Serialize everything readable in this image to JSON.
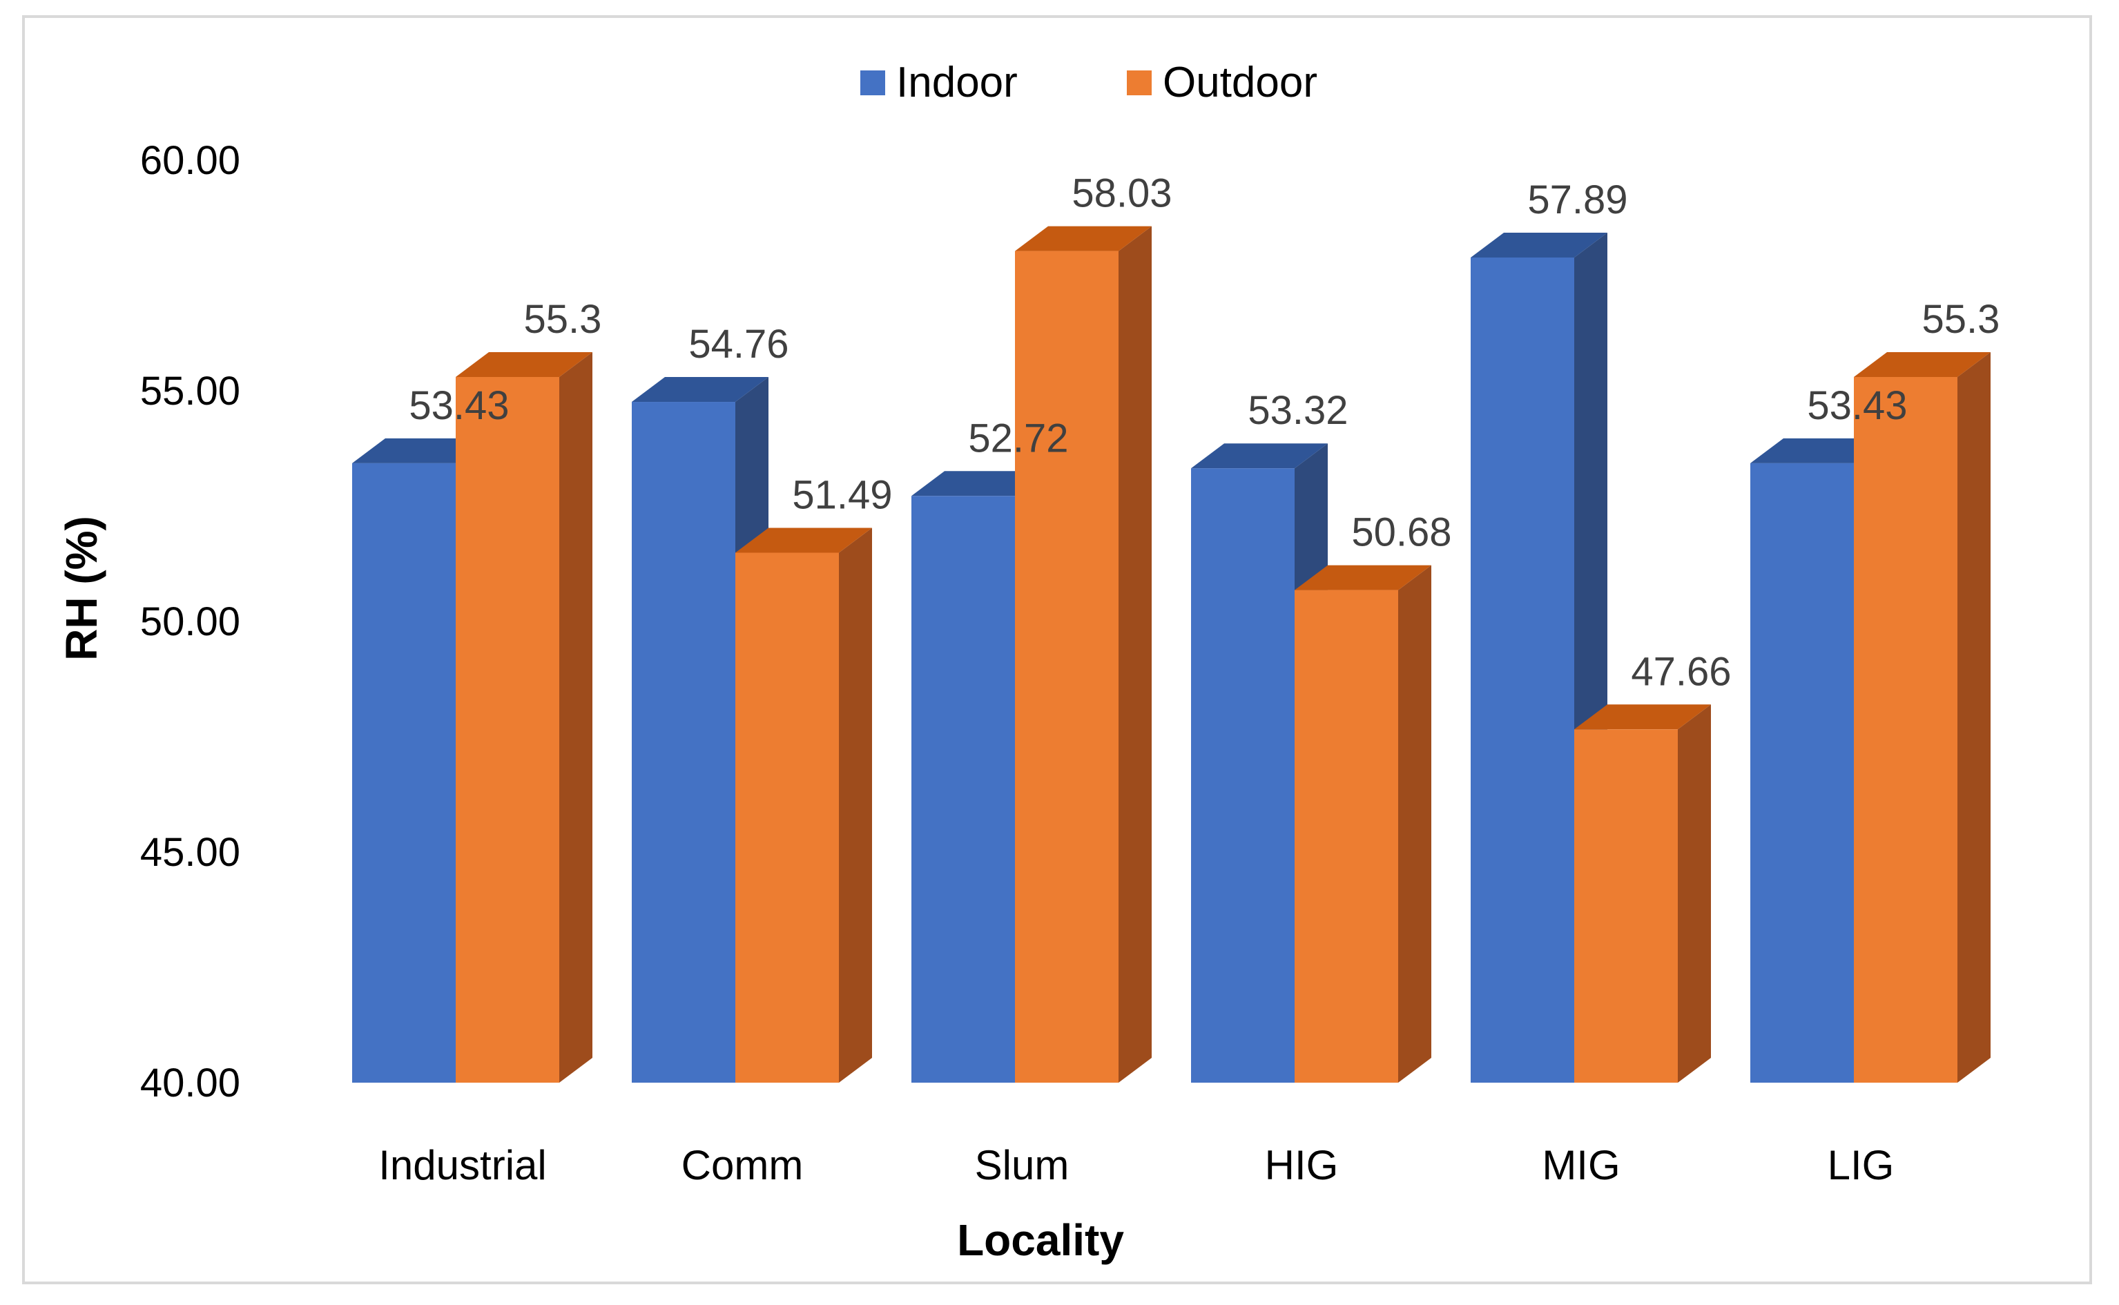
{
  "chart_data": {
    "type": "bar",
    "style": "3d-clustered-column",
    "categories": [
      "Industrial",
      "Comm",
      "Slum",
      "HIG",
      "MIG",
      "LIG"
    ],
    "series": [
      {
        "name": "Indoor",
        "values": [
          53.43,
          54.76,
          52.72,
          53.32,
          57.89,
          53.43
        ],
        "labels": [
          "53.43",
          "54.76",
          "52.72",
          "53.32",
          "57.89",
          "53.43"
        ]
      },
      {
        "name": "Outdoor",
        "values": [
          55.3,
          51.49,
          58.03,
          50.68,
          47.66,
          55.3
        ],
        "labels": [
          "55.3",
          "51.49",
          "58.03",
          "50.68",
          "47.66",
          "55.3"
        ]
      }
    ],
    "xlabel": "Locality",
    "ylabel": "RH (%)",
    "ylim": [
      40,
      60
    ],
    "yticks": [
      "40.00",
      "45.00",
      "50.00",
      "55.00",
      "60.00"
    ],
    "ytick_values": [
      40,
      45,
      50,
      55,
      60
    ],
    "grid": false,
    "legend_position": "top",
    "colors": {
      "Indoor": {
        "front": "#4472C4",
        "top": "#2F5597",
        "side": "#2E4A7D"
      },
      "Outdoor": {
        "front": "#ED7D31",
        "top": "#C55A11",
        "side": "#9E4C1C"
      }
    }
  }
}
